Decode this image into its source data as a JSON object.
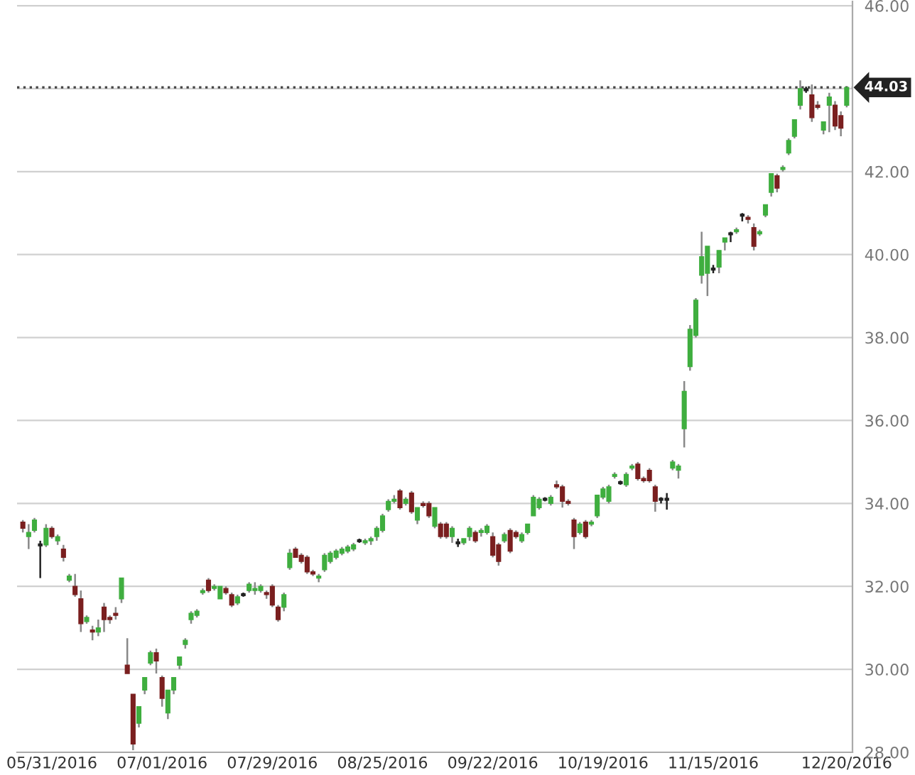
{
  "chart_data": {
    "type": "candlestick",
    "categories": [
      null,
      null,
      null,
      null,
      null,
      "05/31/2016",
      null,
      null,
      null,
      null,
      null,
      null,
      null,
      null,
      null,
      null,
      null,
      null,
      null,
      null,
      null,
      null,
      null,
      null,
      "07/01/2016",
      null,
      null,
      null,
      null,
      null,
      null,
      null,
      null,
      null,
      null,
      null,
      null,
      null,
      null,
      null,
      null,
      null,
      null,
      "07/29/2016",
      null,
      null,
      null,
      null,
      null,
      null,
      null,
      null,
      null,
      null,
      null,
      null,
      null,
      null,
      null,
      null,
      null,
      null,
      "08/25/2016",
      null,
      null,
      null,
      null,
      null,
      null,
      null,
      null,
      null,
      null,
      null,
      null,
      null,
      null,
      null,
      null,
      null,
      null,
      "09/22/2016",
      null,
      null,
      null,
      null,
      null,
      null,
      null,
      null,
      null,
      null,
      null,
      null,
      null,
      null,
      null,
      null,
      null,
      null,
      "10/19/2016",
      null,
      null,
      null,
      null,
      null,
      null,
      null,
      null,
      null,
      null,
      null,
      null,
      null,
      null,
      null,
      null,
      null,
      null,
      "11/15/2016",
      null,
      null,
      null,
      null,
      null,
      null,
      null,
      null,
      null,
      null,
      null,
      null,
      null,
      null,
      null,
      null,
      null,
      null,
      null,
      null,
      null,
      null,
      "12/20/2016"
    ],
    "ohlc": [
      [
        33.55,
        33.6,
        33.3,
        33.4
      ],
      [
        33.2,
        33.5,
        32.9,
        33.3
      ],
      [
        33.35,
        33.65,
        33.3,
        33.6
      ],
      [
        33.0,
        33.1,
        32.2,
        33.0
      ],
      [
        33.0,
        33.5,
        32.95,
        33.4
      ],
      [
        33.4,
        33.45,
        33.15,
        33.2
      ],
      [
        33.1,
        33.25,
        33.0,
        33.2
      ],
      [
        32.9,
        33.0,
        32.6,
        32.7
      ],
      [
        32.15,
        32.3,
        32.1,
        32.25
      ],
      [
        32.0,
        32.3,
        31.75,
        31.8
      ],
      [
        31.7,
        31.9,
        30.9,
        31.1
      ],
      [
        31.15,
        31.3,
        31.1,
        31.25
      ],
      [
        30.95,
        31.05,
        30.7,
        30.9
      ],
      [
        30.9,
        31.2,
        30.8,
        31.0
      ],
      [
        31.5,
        31.6,
        30.9,
        31.2
      ],
      [
        31.25,
        31.3,
        31.1,
        31.2
      ],
      [
        31.35,
        31.5,
        31.2,
        31.3
      ],
      [
        31.7,
        32.2,
        31.6,
        32.2
      ],
      [
        30.1,
        30.75,
        29.9,
        29.9
      ],
      [
        29.4,
        29.4,
        28.05,
        28.2
      ],
      [
        28.7,
        29.1,
        28.6,
        29.1
      ],
      [
        29.5,
        29.8,
        29.4,
        29.8
      ],
      [
        30.15,
        30.45,
        30.1,
        30.4
      ],
      [
        30.4,
        30.5,
        29.9,
        30.2
      ],
      [
        29.8,
        29.85,
        29.1,
        29.3
      ],
      [
        28.95,
        29.5,
        28.8,
        29.5
      ],
      [
        29.5,
        29.8,
        29.4,
        29.8
      ],
      [
        30.1,
        30.3,
        30.0,
        30.3
      ],
      [
        30.6,
        30.75,
        30.5,
        30.7
      ],
      [
        31.2,
        31.4,
        31.1,
        31.35
      ],
      [
        31.3,
        31.45,
        31.25,
        31.4
      ],
      [
        31.85,
        31.95,
        31.8,
        31.9
      ],
      [
        32.15,
        32.2,
        31.85,
        31.9
      ],
      [
        31.95,
        32.05,
        31.9,
        32.0
      ],
      [
        31.7,
        32.0,
        31.7,
        32.0
      ],
      [
        31.95,
        32.0,
        31.8,
        31.85
      ],
      [
        31.8,
        31.85,
        31.5,
        31.55
      ],
      [
        31.6,
        31.8,
        31.55,
        31.75
      ],
      [
        31.8,
        31.85,
        31.75,
        31.8
      ],
      [
        31.9,
        32.1,
        31.85,
        32.05
      ],
      [
        31.9,
        32.1,
        31.8,
        31.95
      ],
      [
        31.9,
        32.05,
        31.85,
        32.0
      ],
      [
        31.85,
        31.9,
        31.7,
        31.8
      ],
      [
        32.0,
        32.05,
        31.5,
        31.55
      ],
      [
        31.5,
        31.55,
        31.15,
        31.2
      ],
      [
        31.5,
        31.85,
        31.4,
        31.8
      ],
      [
        32.45,
        32.9,
        32.4,
        32.8
      ],
      [
        32.9,
        32.95,
        32.7,
        32.7
      ],
      [
        32.75,
        32.8,
        32.55,
        32.6
      ],
      [
        32.7,
        32.75,
        32.3,
        32.35
      ],
      [
        32.35,
        32.4,
        32.25,
        32.3
      ],
      [
        32.2,
        32.3,
        32.1,
        32.25
      ],
      [
        32.4,
        32.8,
        32.35,
        32.75
      ],
      [
        32.6,
        32.85,
        32.55,
        32.8
      ],
      [
        32.7,
        32.9,
        32.65,
        32.85
      ],
      [
        32.8,
        32.95,
        32.75,
        32.9
      ],
      [
        32.85,
        33.0,
        32.8,
        32.95
      ],
      [
        32.9,
        33.05,
        32.85,
        33.0
      ],
      [
        33.1,
        33.15,
        33.05,
        33.1
      ],
      [
        33.05,
        33.15,
        33.0,
        33.1
      ],
      [
        33.1,
        33.2,
        33.0,
        33.15
      ],
      [
        33.2,
        33.45,
        33.1,
        33.4
      ],
      [
        33.35,
        33.75,
        33.3,
        33.7
      ],
      [
        33.85,
        34.1,
        33.8,
        34.05
      ],
      [
        34.05,
        34.2,
        34.0,
        34.1
      ],
      [
        34.3,
        34.35,
        33.85,
        33.9
      ],
      [
        34.0,
        34.15,
        33.95,
        34.1
      ],
      [
        34.25,
        34.3,
        33.75,
        33.8
      ],
      [
        33.6,
        33.9,
        33.5,
        33.9
      ],
      [
        34.0,
        34.05,
        33.9,
        33.95
      ],
      [
        34.0,
        34.05,
        33.65,
        33.7
      ],
      [
        33.45,
        33.9,
        33.4,
        33.9
      ],
      [
        33.5,
        33.55,
        33.15,
        33.2
      ],
      [
        33.5,
        33.55,
        33.15,
        33.2
      ],
      [
        33.2,
        33.45,
        33.05,
        33.4
      ],
      [
        33.05,
        33.15,
        32.95,
        33.05
      ],
      [
        33.05,
        33.15,
        33.0,
        33.15
      ],
      [
        33.2,
        33.45,
        33.1,
        33.4
      ],
      [
        33.3,
        33.35,
        33.05,
        33.1
      ],
      [
        33.3,
        33.4,
        33.2,
        33.35
      ],
      [
        33.3,
        33.5,
        33.25,
        33.45
      ],
      [
        33.2,
        33.3,
        32.7,
        32.75
      ],
      [
        33.0,
        33.05,
        32.5,
        32.6
      ],
      [
        33.1,
        33.3,
        33.05,
        33.25
      ],
      [
        33.35,
        33.4,
        32.8,
        32.85
      ],
      [
        33.3,
        33.35,
        33.15,
        33.2
      ],
      [
        33.1,
        33.3,
        33.05,
        33.25
      ],
      [
        33.3,
        33.5,
        33.25,
        33.5
      ],
      [
        33.7,
        34.2,
        33.7,
        34.15
      ],
      [
        33.9,
        34.15,
        33.85,
        34.1
      ],
      [
        34.1,
        34.15,
        34.05,
        34.1
      ],
      [
        34.0,
        34.2,
        33.95,
        34.15
      ],
      [
        34.45,
        34.55,
        34.35,
        34.4
      ],
      [
        34.4,
        34.45,
        33.9,
        34.05
      ],
      [
        34.05,
        34.1,
        33.95,
        34.0
      ],
      [
        33.6,
        33.65,
        32.9,
        33.2
      ],
      [
        33.3,
        33.55,
        33.25,
        33.5
      ],
      [
        33.55,
        33.6,
        33.15,
        33.2
      ],
      [
        33.5,
        33.6,
        33.45,
        33.55
      ],
      [
        33.7,
        34.2,
        33.65,
        34.2
      ],
      [
        34.15,
        34.4,
        34.1,
        34.35
      ],
      [
        34.05,
        34.45,
        34.0,
        34.4
      ],
      [
        34.65,
        34.75,
        34.6,
        34.7
      ],
      [
        34.5,
        34.55,
        34.45,
        34.5
      ],
      [
        34.45,
        34.75,
        34.4,
        34.7
      ],
      [
        34.85,
        34.95,
        34.8,
        34.9
      ],
      [
        34.95,
        35.0,
        34.55,
        34.6
      ],
      [
        34.6,
        34.65,
        34.5,
        34.55
      ],
      [
        34.8,
        34.85,
        34.5,
        34.55
      ],
      [
        34.4,
        34.45,
        33.8,
        34.05
      ],
      [
        34.1,
        34.15,
        34.0,
        34.1
      ],
      [
        34.1,
        34.25,
        33.85,
        34.1
      ],
      [
        34.85,
        35.05,
        34.8,
        35.0
      ],
      [
        34.8,
        34.95,
        34.6,
        34.9
      ],
      [
        35.8,
        36.95,
        35.35,
        36.7
      ],
      [
        37.3,
        38.3,
        37.2,
        38.2
      ],
      [
        38.05,
        38.95,
        38.0,
        38.9
      ],
      [
        39.5,
        40.55,
        39.3,
        39.95
      ],
      [
        39.55,
        40.2,
        39.0,
        40.2
      ],
      [
        39.65,
        39.75,
        39.55,
        39.65
      ],
      [
        39.7,
        40.1,
        39.55,
        40.1
      ],
      [
        40.3,
        40.4,
        40.1,
        40.4
      ],
      [
        40.5,
        40.55,
        40.3,
        40.5
      ],
      [
        40.55,
        40.65,
        40.5,
        40.6
      ],
      [
        40.95,
        41.0,
        40.8,
        40.95
      ],
      [
        40.9,
        40.95,
        40.75,
        40.85
      ],
      [
        40.65,
        40.75,
        40.1,
        40.2
      ],
      [
        40.5,
        40.6,
        40.45,
        40.55
      ],
      [
        40.95,
        41.2,
        40.9,
        41.2
      ],
      [
        41.5,
        41.95,
        41.4,
        41.95
      ],
      [
        41.9,
        41.95,
        41.5,
        41.6
      ],
      [
        42.05,
        42.15,
        42.0,
        42.1
      ],
      [
        42.45,
        42.8,
        42.4,
        42.75
      ],
      [
        42.85,
        43.25,
        42.8,
        43.25
      ],
      [
        43.6,
        44.2,
        43.5,
        44.0
      ],
      [
        43.95,
        44.05,
        43.9,
        44.0
      ],
      [
        43.85,
        44.1,
        43.2,
        43.3
      ],
      [
        43.6,
        43.7,
        43.5,
        43.55
      ],
      [
        43.0,
        43.2,
        42.9,
        43.2
      ],
      [
        43.6,
        43.9,
        42.95,
        43.8
      ],
      [
        43.6,
        43.7,
        43.0,
        43.1
      ],
      [
        43.35,
        43.45,
        42.85,
        43.05
      ],
      [
        43.6,
        44.03,
        43.55,
        44.03
      ]
    ],
    "colors": [
      "#7a1f1f",
      "#3fae3f",
      "#3fae3f",
      "#222222",
      "#3fae3f",
      "#7a1f1f",
      "#3fae3f",
      "#7a1f1f",
      "#3fae3f",
      "#7a1f1f",
      "#7a1f1f",
      "#3fae3f",
      "#7a1f1f",
      "#3fae3f",
      "#7a1f1f",
      "#7a1f1f",
      "#7a1f1f",
      "#3fae3f",
      "#7a1f1f",
      "#7a1f1f",
      "#3fae3f",
      "#3fae3f",
      "#3fae3f",
      "#7a1f1f",
      "#7a1f1f",
      "#3fae3f",
      "#3fae3f",
      "#3fae3f",
      "#3fae3f",
      "#3fae3f",
      "#3fae3f",
      "#3fae3f",
      "#7a1f1f",
      "#3fae3f",
      "#3fae3f",
      "#7a1f1f",
      "#7a1f1f",
      "#3fae3f",
      "#222222",
      "#3fae3f",
      "#3fae3f",
      "#3fae3f",
      "#7a1f1f",
      "#7a1f1f",
      "#7a1f1f",
      "#3fae3f",
      "#3fae3f",
      "#7a1f1f",
      "#7a1f1f",
      "#7a1f1f",
      "#7a1f1f",
      "#3fae3f",
      "#3fae3f",
      "#3fae3f",
      "#3fae3f",
      "#3fae3f",
      "#3fae3f",
      "#3fae3f",
      "#222222",
      "#3fae3f",
      "#3fae3f",
      "#3fae3f",
      "#3fae3f",
      "#3fae3f",
      "#3fae3f",
      "#7a1f1f",
      "#3fae3f",
      "#7a1f1f",
      "#3fae3f",
      "#7a1f1f",
      "#7a1f1f",
      "#3fae3f",
      "#7a1f1f",
      "#7a1f1f",
      "#3fae3f",
      "#222222",
      "#3fae3f",
      "#3fae3f",
      "#7a1f1f",
      "#3fae3f",
      "#3fae3f",
      "#7a1f1f",
      "#7a1f1f",
      "#3fae3f",
      "#7a1f1f",
      "#7a1f1f",
      "#3fae3f",
      "#3fae3f",
      "#3fae3f",
      "#3fae3f",
      "#222222",
      "#3fae3f",
      "#7a1f1f",
      "#7a1f1f",
      "#7a1f1f",
      "#7a1f1f",
      "#3fae3f",
      "#7a1f1f",
      "#3fae3f",
      "#3fae3f",
      "#3fae3f",
      "#3fae3f",
      "#3fae3f",
      "#222222",
      "#3fae3f",
      "#3fae3f",
      "#7a1f1f",
      "#7a1f1f",
      "#7a1f1f",
      "#7a1f1f",
      "#222222",
      "#222222",
      "#3fae3f",
      "#3fae3f",
      "#3fae3f",
      "#3fae3f",
      "#3fae3f",
      "#3fae3f",
      "#3fae3f",
      "#222222",
      "#3fae3f",
      "#3fae3f",
      "#222222",
      "#3fae3f",
      "#222222",
      "#7a1f1f",
      "#7a1f1f",
      "#3fae3f",
      "#3fae3f",
      "#3fae3f",
      "#7a1f1f",
      "#3fae3f",
      "#3fae3f",
      "#3fae3f",
      "#3fae3f",
      "#222222",
      "#7a1f1f",
      "#7a1f1f",
      "#3fae3f",
      "#3fae3f",
      "#7a1f1f",
      "#7a1f1f",
      "#3fae3f"
    ],
    "ylim": [
      28,
      46.1
    ],
    "yticks": [
      {
        "value": 28,
        "label": "28.00"
      },
      {
        "value": 30,
        "label": "30.00"
      },
      {
        "value": 32,
        "label": "32.00"
      },
      {
        "value": 34,
        "label": "34.00"
      },
      {
        "value": 36,
        "label": "36.00"
      },
      {
        "value": 38,
        "label": "38.00"
      },
      {
        "value": 40,
        "label": "40.00"
      },
      {
        "value": 42,
        "label": "42.00"
      },
      {
        "value": 44,
        "label": null
      },
      {
        "value": 46,
        "label": "46.00"
      }
    ],
    "grid": "y",
    "ref_lines": [
      {
        "axis": "y",
        "value": 44.03,
        "label": "44.03",
        "color": "#444444",
        "line_style": "dotted"
      }
    ]
  }
}
